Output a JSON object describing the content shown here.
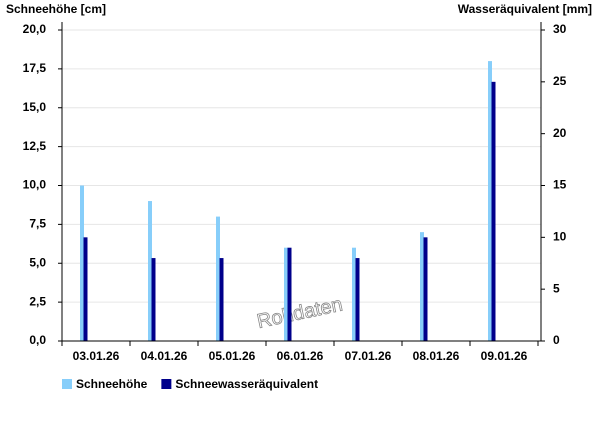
{
  "chart_data": {
    "type": "bar",
    "y_label": "Schneehöhe [cm]",
    "y2_label": "Wasseräquivalent [mm]",
    "watermark": "Rohdaten",
    "categories": [
      "03.01.26",
      "04.01.26",
      "05.01.26",
      "06.01.26",
      "07.01.26",
      "08.01.26",
      "09.01.26"
    ],
    "series": [
      {
        "name": "Schneehöhe",
        "color": "#87cefa",
        "values": [
          10,
          9,
          8,
          6,
          6,
          7,
          18
        ]
      },
      {
        "name": "Schneewasseräquivalent",
        "color": "#00008b",
        "axis": "y2",
        "values": [
          10,
          8,
          8,
          9,
          8,
          10,
          25
        ]
      }
    ],
    "ylim": [
      0,
      20
    ],
    "yticks": [
      {
        "value": 0,
        "label": "0,0"
      },
      {
        "value": 2.5,
        "label": "2,5"
      },
      {
        "value": 5,
        "label": "5,0"
      },
      {
        "value": 7.5,
        "label": "7,5"
      },
      {
        "value": 10,
        "label": "10,0"
      },
      {
        "value": 12.5,
        "label": "12,5"
      },
      {
        "value": 15,
        "label": "15,0"
      },
      {
        "value": 17.5,
        "label": "17,5"
      },
      {
        "value": 20,
        "label": "20,0"
      }
    ],
    "y2lim": [
      0,
      30
    ],
    "y2ticks": [
      0,
      5,
      10,
      15,
      20,
      25,
      30
    ],
    "grid": true
  }
}
